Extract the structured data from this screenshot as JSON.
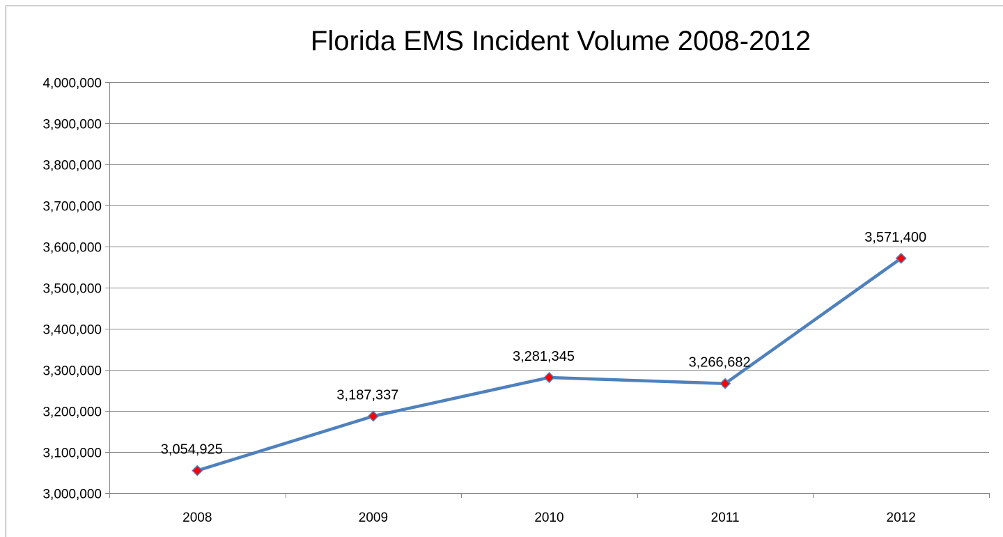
{
  "chart_data": {
    "type": "line",
    "title": "Florida EMS Incident Volume 2008-2012",
    "xlabel": "",
    "ylabel": "",
    "categories": [
      "2008",
      "2009",
      "2010",
      "2011",
      "2012"
    ],
    "series": [
      {
        "values": [
          3054925,
          3187337,
          3281345,
          3266682,
          3571400
        ],
        "data_labels": [
          "3,054,925",
          "3,187,337",
          "3,281,345",
          "3,266,682",
          "3,571,400"
        ]
      }
    ],
    "ylim": [
      3000000,
      4000000
    ],
    "yticks": [
      3000000,
      3100000,
      3200000,
      3300000,
      3400000,
      3500000,
      3600000,
      3700000,
      3800000,
      3900000,
      4000000
    ],
    "ytick_labels": [
      "3,000,000",
      "3,100,000",
      "3,200,000",
      "3,300,000",
      "3,400,000",
      "3,500,000",
      "3,600,000",
      "3,700,000",
      "3,800,000",
      "3,900,000",
      "4,000,000"
    ],
    "grid": true,
    "legend": "none",
    "colors": {
      "line": "#4F81BD",
      "marker_fill": "#FF0000",
      "marker_stroke": "#4F81BD",
      "gridline": "#868686",
      "axis": "#868686"
    }
  }
}
